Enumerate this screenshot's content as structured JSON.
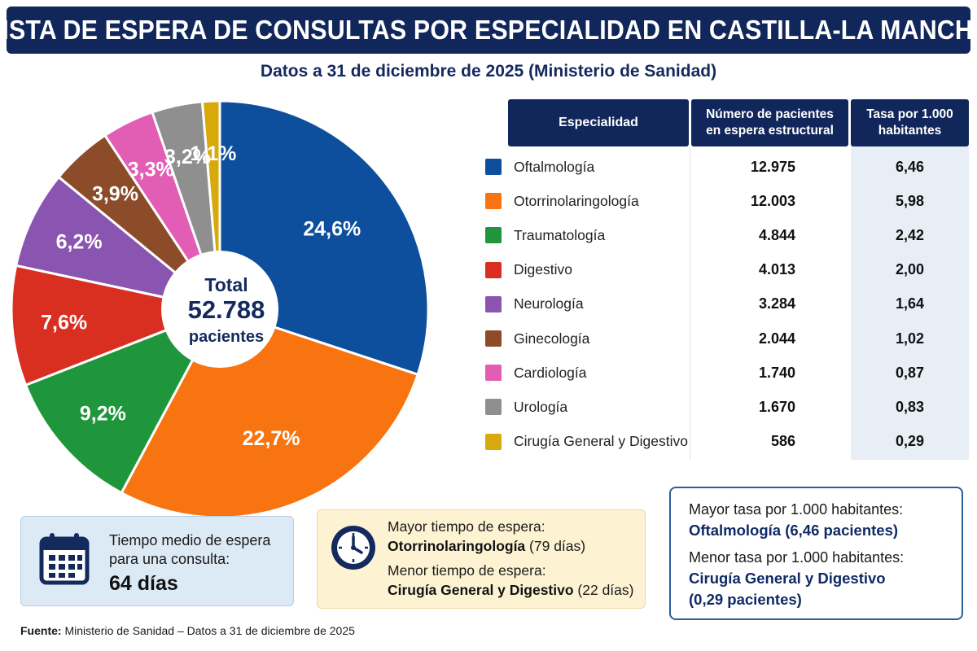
{
  "header": {
    "title": "LISTA DE ESPERA DE CONSULTAS POR ESPECIALIDAD EN CASTILLA-LA MANCHA",
    "subtitle": "Datos a 31 de diciembre de 2025 (Ministerio de Sanidad)"
  },
  "chart_data": {
    "type": "pie",
    "center": {
      "line1": "Total",
      "line2": "52.788",
      "line3": "pacientes"
    },
    "slices": [
      {
        "label": "Oftalmología",
        "value": 24.6,
        "text": "24,6%",
        "color": "#0d4f9c"
      },
      {
        "label": "Otorrinolaringología",
        "value": 22.7,
        "text": "22,7%",
        "color": "#f77410"
      },
      {
        "label": "Traumatología",
        "value": 9.2,
        "text": "9,2%",
        "color": "#1f963c"
      },
      {
        "label": "Digestivo",
        "value": 7.6,
        "text": "7,6%",
        "color": "#d92f21"
      },
      {
        "label": "Neurología",
        "value": 6.2,
        "text": "6,2%",
        "color": "#8a55b1"
      },
      {
        "label": "Ginecología",
        "value": 3.9,
        "text": "3,9%",
        "color": "#8c4c2a"
      },
      {
        "label": "Cardiología",
        "value": 3.3,
        "text": "3,3%",
        "color": "#e25db4"
      },
      {
        "label": "Urología",
        "value": 3.2,
        "text": "3,2%",
        "color": "#8f8f8f"
      },
      {
        "label": "Cirugía General y Digestivo",
        "value": 1.1,
        "text": "1,1%",
        "color": "#d8a90a"
      }
    ]
  },
  "table": {
    "headers": [
      "Especialidad",
      "Número de pacientes\nen espera estructural",
      "Tasa por 1.000\nhabitantes"
    ],
    "rows": [
      {
        "name": "Oftalmología",
        "patients": "12.975",
        "rate": "6,46",
        "color": "#0d4f9c"
      },
      {
        "name": "Otorrinolaringología",
        "patients": "12.003",
        "rate": "5,98",
        "color": "#f77410"
      },
      {
        "name": "Traumatología",
        "patients": "4.844",
        "rate": "2,42",
        "color": "#1f963c"
      },
      {
        "name": "Digestivo",
        "patients": "4.013",
        "rate": "2,00",
        "color": "#d92f21"
      },
      {
        "name": "Neurología",
        "patients": "3.284",
        "rate": "1,64",
        "color": "#8a55b1"
      },
      {
        "name": "Ginecología",
        "patients": "2.044",
        "rate": "1,02",
        "color": "#8c4c2a"
      },
      {
        "name": "Cardiología",
        "patients": "1.740",
        "rate": "0,87",
        "color": "#e25db4"
      },
      {
        "name": "Urología",
        "patients": "1.670",
        "rate": "0,83",
        "color": "#8f8f8f"
      },
      {
        "name": "Cirugía General y Digestivo",
        "patients": "586",
        "rate": "0,29",
        "color": "#d8a90a"
      }
    ]
  },
  "box_wait": {
    "icon": "calendar-icon",
    "line1": "Tiempo medio de espera",
    "line2": "para una consulta:",
    "value": "64 días"
  },
  "box_times": {
    "icon": "clock-icon",
    "max_label": "Mayor tiempo de espera:",
    "max_specialty": "Otorrinolaringología",
    "max_days": "(79 días)",
    "min_label": "Menor tiempo de espera:",
    "min_specialty": "Cirugía General y Digestivo",
    "min_days": "(22 días)"
  },
  "box_rates": {
    "max_label": "Mayor tasa por 1.000 habitantes:",
    "max_value": "Oftalmología (6,46 pacientes)",
    "min_label": "Menor tasa por 1.000 habitantes:",
    "min_value_1": "Cirugía General y Digestivo",
    "min_value_2": "(0,29 pacientes)"
  },
  "source": {
    "label": "Fuente:",
    "text": "Ministerio de Sanidad – Datos a 31 de diciembre de 2025"
  }
}
